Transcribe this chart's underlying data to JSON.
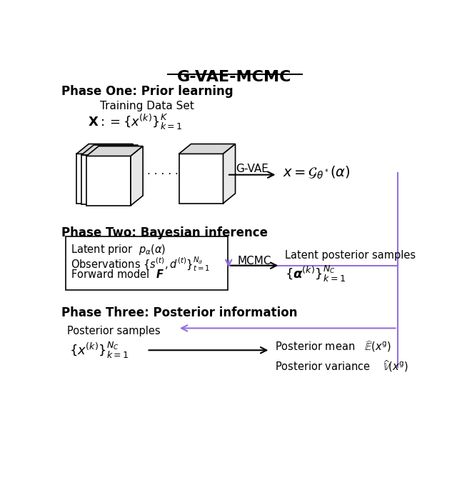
{
  "title": "G-VAE-MCMC",
  "bg_color": "#ffffff",
  "purple_color": "#9370DB",
  "black_color": "#000000",
  "phase1_label": "Phase One: Prior learning",
  "phase2_label": "Phase Two: Bayesian inference",
  "phase3_label": "Phase Three: Posterior information",
  "training_data_label": "Training Data Set",
  "X_formula": "$\\mathbf{X} := \\{x^{(k)}\\}_{k=1}^{K}$",
  "gvae_label": "G-VAE",
  "gvae_formula": "$x = \\mathcal{G}_{\\theta^*}(\\alpha)$",
  "latent_prior": "Latent prior  $p_{\\alpha}(\\alpha)$",
  "observations": "Observations $\\{s^{(t)}, d^{(t)}\\}_{t=1}^{N_d}$",
  "forward_model": "Forward model  $\\boldsymbol{F}$",
  "mcmc_label": "MCMC",
  "latent_post_label": "Latent posterior samples",
  "latent_post_formula": "$\\{\\boldsymbol{\\alpha}^{(k)}\\}_{k=1}^{N_C}$",
  "post_samples_label": "Posterior samples",
  "post_samples_formula": "$\\{x^{(k)}\\}_{k=1}^{N_C}$",
  "post_mean_label": "Posterior mean",
  "post_mean_formula": "$\\widehat{\\mathbb{E}}(x^{\\mathrm{g}})$",
  "post_var_label": "Posterior variance",
  "post_var_formula": "$\\widehat{\\mathbb{V}}(x^{\\mathrm{g}})$",
  "purple_color_arrow": "#9B72CF"
}
